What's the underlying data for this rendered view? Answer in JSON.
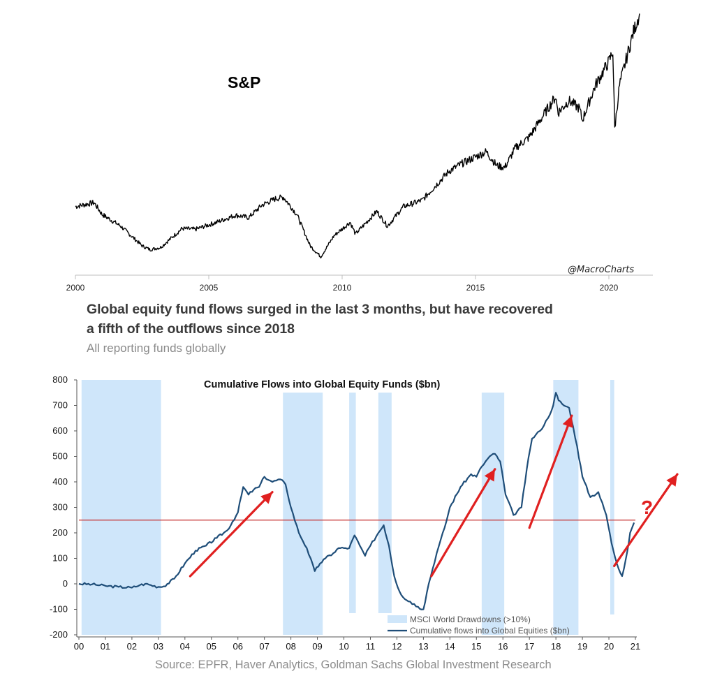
{
  "top_chart": {
    "label": "S&P",
    "watermark": "@MacroCharts",
    "x_ticks": [
      "2000",
      "2005",
      "2010",
      "2015",
      "2020"
    ],
    "chart_data": {
      "type": "line",
      "title": "",
      "series": [
        {
          "name": "S&P",
          "x": [
            2000.0,
            2000.7,
            2001.0,
            2001.7,
            2002.5,
            2002.8,
            2003.2,
            2004.0,
            2004.5,
            2005.3,
            2006.0,
            2006.5,
            2007.0,
            2007.5,
            2007.8,
            2008.3,
            2008.8,
            2009.2,
            2009.7,
            2010.3,
            2010.5,
            2011.3,
            2011.7,
            2012.3,
            2013.0,
            2014.0,
            2014.5,
            2015.4,
            2015.8,
            2016.1,
            2016.5,
            2017.0,
            2018.0,
            2018.1,
            2018.5,
            2018.9,
            2019.0,
            2019.5,
            2020.0,
            2020.15,
            2020.22,
            2020.4,
            2020.9,
            2021.15
          ],
          "y": [
            1400,
            1450,
            1300,
            1150,
            900,
            850,
            880,
            1120,
            1110,
            1200,
            1290,
            1260,
            1420,
            1500,
            1520,
            1300,
            900,
            760,
            1030,
            1200,
            1050,
            1340,
            1150,
            1400,
            1480,
            1850,
            1950,
            2100,
            1920,
            1900,
            2150,
            2280,
            2800,
            2600,
            2750,
            2650,
            2500,
            2950,
            3250,
            3380,
            2400,
            2950,
            3600,
            3860
          ]
        }
      ],
      "xlim": [
        2000,
        2021.3
      ],
      "ylim": [
        650,
        3900
      ],
      "grid": false,
      "legend": false
    }
  },
  "headline_line1": "Global equity fund flows surged in the last 3 months, but have recovered",
  "headline_line2": "a fifth of the outflows since 2018",
  "subheadline": "All reporting funds globally",
  "source": "Source: EPFR, Haver Analytics, Goldman Sachs Global Investment Research",
  "question_mark": "?",
  "colors": {
    "flow_line": "#1f4e79",
    "drawdown_band": "#cfe6fa",
    "arrow": "#e02020",
    "ref_line": "#c43030",
    "sp_line": "#000000"
  },
  "flows_chart": {
    "chart_data": {
      "type": "line",
      "title": "Cumulative Flows into Global Equity Funds ($bn)",
      "x_ticks": [
        "00",
        "01",
        "02",
        "03",
        "04",
        "05",
        "06",
        "07",
        "08",
        "09",
        "10",
        "11",
        "12",
        "13",
        "14",
        "15",
        "16",
        "17",
        "18",
        "19",
        "20",
        "21"
      ],
      "y_ticks": [
        "800",
        "700",
        "600",
        "500",
        "400",
        "300",
        "200",
        "100",
        "0",
        "-100",
        "-200"
      ],
      "xlim": [
        2000.0,
        2021.0
      ],
      "ylim": [
        -200,
        800
      ],
      "reference_line": 250,
      "drawdowns": [
        [
          2000.1,
          2003.1
        ],
        [
          2007.7,
          2009.2
        ],
        [
          2010.2,
          2010.45
        ],
        [
          2011.3,
          2011.8
        ],
        [
          2015.2,
          2016.05
        ],
        [
          2017.9,
          2018.85
        ],
        [
          2020.05,
          2020.2
        ]
      ],
      "series": [
        {
          "name": "Cumulative flows into Global Equities ($bn)",
          "x": [
            2000.0,
            2000.5,
            2001.0,
            2001.5,
            2002.0,
            2002.3,
            2002.5,
            2003.0,
            2003.2,
            2003.6,
            2004.0,
            2004.4,
            2004.8,
            2005.2,
            2005.6,
            2006.0,
            2006.2,
            2006.4,
            2006.6,
            2006.8,
            2007.0,
            2007.3,
            2007.6,
            2007.8,
            2008.0,
            2008.3,
            2008.6,
            2008.9,
            2009.1,
            2009.3,
            2009.6,
            2009.8,
            2010.0,
            2010.2,
            2010.4,
            2010.6,
            2010.8,
            2011.0,
            2011.3,
            2011.5,
            2011.7,
            2011.9,
            2012.1,
            2012.3,
            2012.5,
            2012.8,
            2013.0,
            2013.2,
            2013.5,
            2013.8,
            2014.0,
            2014.4,
            2014.8,
            2015.0,
            2015.2,
            2015.5,
            2015.7,
            2015.9,
            2016.1,
            2016.4,
            2016.7,
            2016.9,
            2017.1,
            2017.4,
            2017.7,
            2017.9,
            2018.0,
            2018.1,
            2018.3,
            2018.5,
            2018.8,
            2019.0,
            2019.3,
            2019.6,
            2019.9,
            2020.1,
            2020.3,
            2020.5,
            2020.7,
            2020.8,
            2020.95
          ],
          "y": [
            0,
            -2,
            -8,
            -12,
            -15,
            -5,
            0,
            -12,
            -10,
            20,
            80,
            130,
            150,
            180,
            210,
            280,
            380,
            350,
            370,
            380,
            420,
            400,
            410,
            390,
            300,
            200,
            140,
            50,
            80,
            100,
            120,
            140,
            140,
            140,
            190,
            150,
            110,
            150,
            200,
            230,
            150,
            30,
            -30,
            -60,
            -70,
            -90,
            -100,
            0,
            120,
            220,
            300,
            380,
            430,
            420,
            460,
            500,
            510,
            480,
            350,
            270,
            300,
            450,
            570,
            600,
            650,
            700,
            750,
            720,
            700,
            690,
            540,
            420,
            340,
            360,
            270,
            160,
            80,
            30,
            130,
            200,
            240
          ]
        }
      ]
    }
  }
}
